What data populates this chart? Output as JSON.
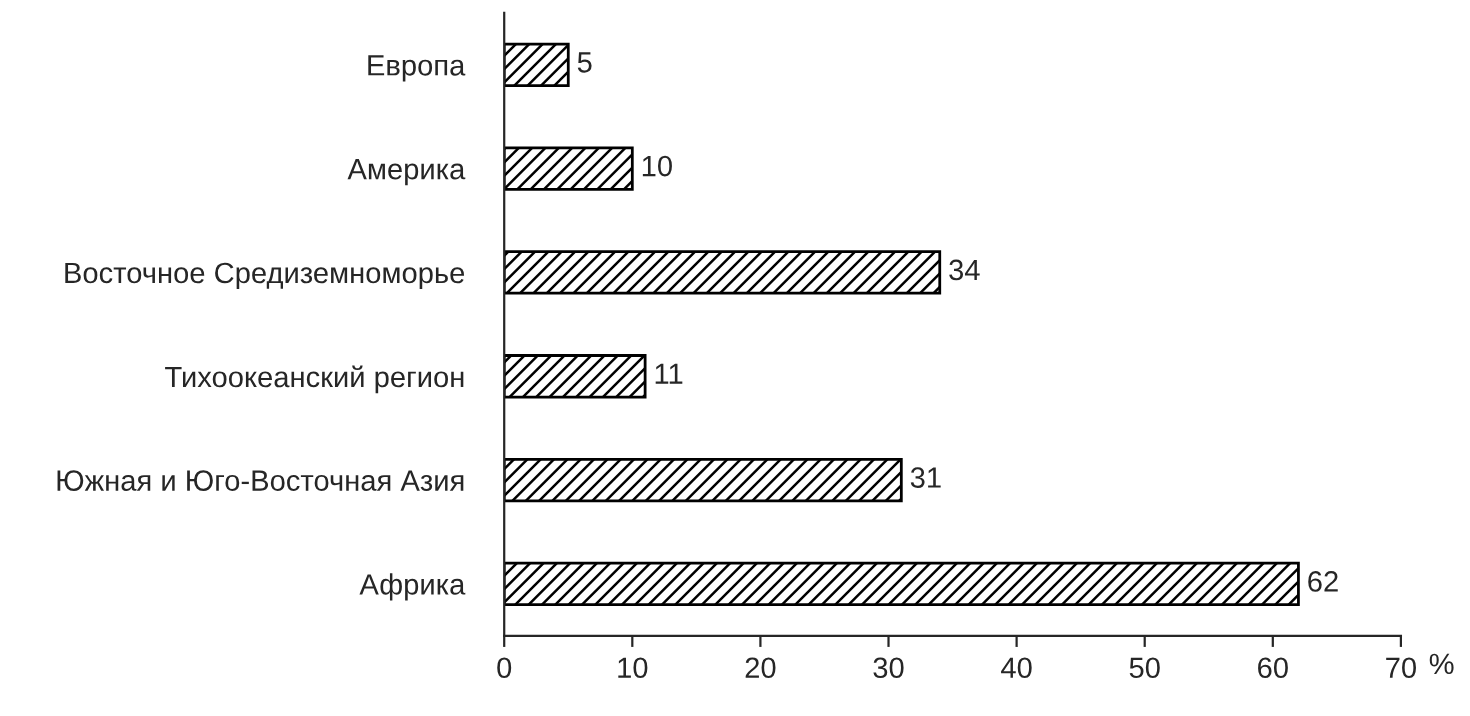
{
  "chart_data": {
    "type": "bar",
    "orientation": "horizontal",
    "categories": [
      "Европа",
      "Америка",
      "Восточное Средиземноморье",
      "Тихоокеанский регион",
      "Южная и Юго-Восточная Азия",
      "Африка"
    ],
    "values": [
      5,
      10,
      34,
      11,
      31,
      62
    ],
    "color": "#000000",
    "xlim": [
      0,
      70
    ],
    "xticks": [
      0,
      10,
      20,
      30,
      40,
      50,
      60,
      70
    ],
    "xlabel": "%",
    "data_labels": true,
    "grid": false
  }
}
